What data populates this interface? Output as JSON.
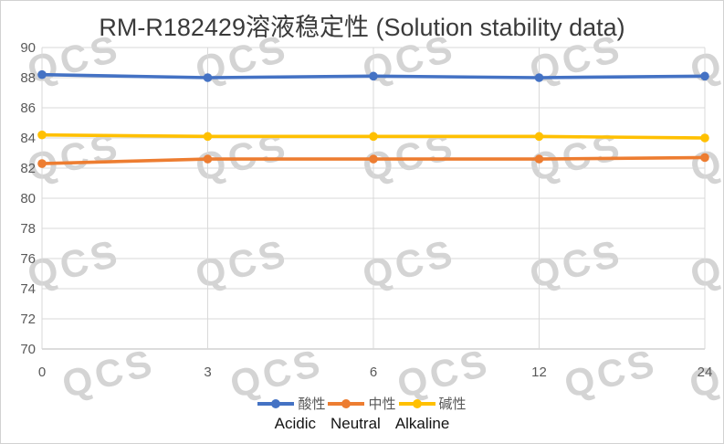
{
  "watermark": {
    "text": "QCS",
    "color": "#d4d4d4"
  },
  "chart_data": {
    "type": "line",
    "title": "RM-R182429溶液稳定性 (Solution stability data)",
    "categories": [
      "0",
      "3",
      "6",
      "12",
      "24"
    ],
    "x_axis_type": "category",
    "series": [
      {
        "name": "酸性",
        "name_en": "Acidic",
        "color": "#4472C4",
        "values": [
          88.2,
          88.0,
          88.1,
          88.0,
          88.1
        ]
      },
      {
        "name": "中性",
        "name_en": "Neutral",
        "color": "#ED7D31",
        "values": [
          82.3,
          82.6,
          82.6,
          82.6,
          82.7
        ]
      },
      {
        "name": "碱性",
        "name_en": "Alkaline",
        "color": "#FFC000",
        "values": [
          84.2,
          84.1,
          84.1,
          84.1,
          84.0
        ]
      }
    ],
    "ylim": [
      70,
      90
    ],
    "ytick_step": 2,
    "grid": "both",
    "gridline_color": "#d9d9d9",
    "axis_line_color": "#b9b9b9",
    "tick_label_color": "#595959",
    "legend_position": "bottom",
    "marker": "circle"
  }
}
